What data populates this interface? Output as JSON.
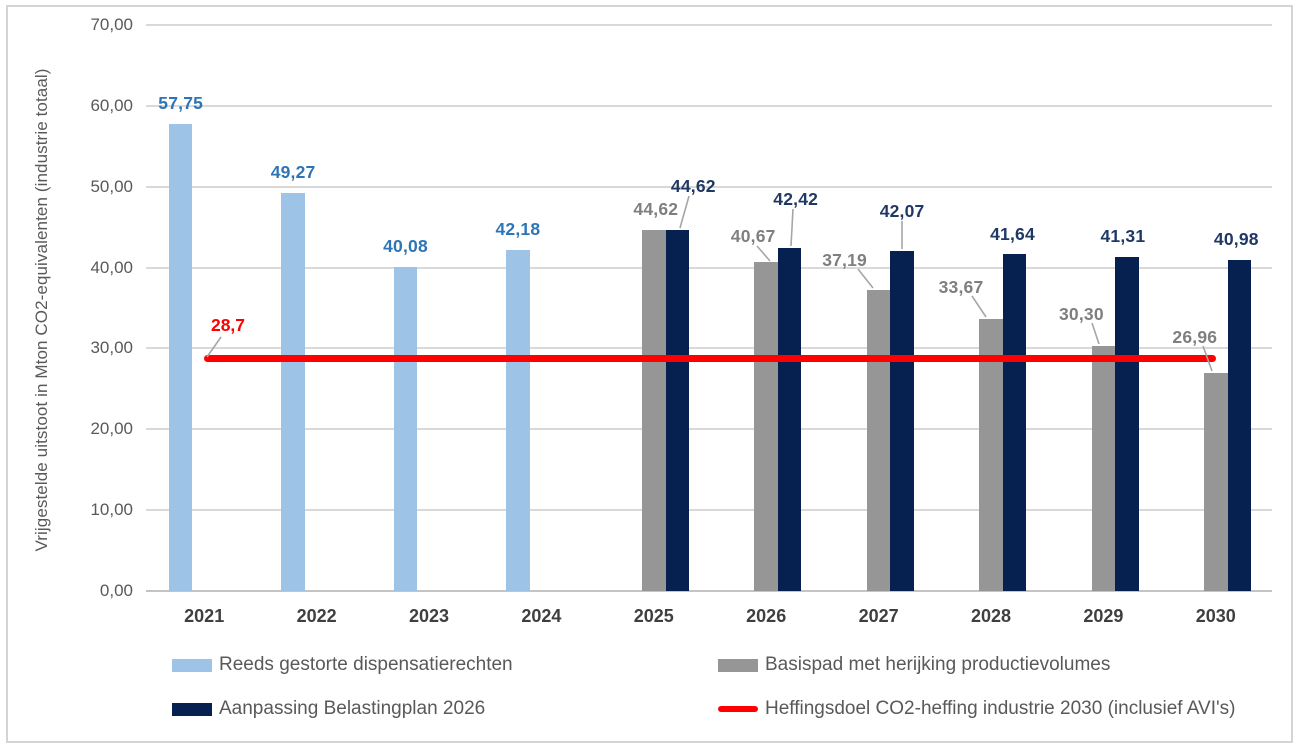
{
  "chart_data": {
    "type": "bar",
    "ylabel": "Vrijgestelde uitstoot in Mton CO2-equivalenten (industrie totaal)",
    "ylim": [
      0,
      70
    ],
    "y_tick_step": 10,
    "y_tick_labels": [
      "0,00",
      "10,00",
      "20,00",
      "30,00",
      "40,00",
      "50,00",
      "60,00",
      "70,00"
    ],
    "categories": [
      "2021",
      "2022",
      "2023",
      "2024",
      "2025",
      "2026",
      "2027",
      "2028",
      "2029",
      "2030"
    ],
    "grid": true,
    "legend_position": "bottom",
    "series": [
      {
        "name": "Reeds gestorte dispensatierechten",
        "color": "#9DC3E6",
        "label_color": "#2E75B6",
        "values": [
          57.75,
          49.27,
          40.08,
          42.18,
          null,
          null,
          null,
          null,
          null,
          null
        ],
        "labels": [
          "57,75",
          "49,27",
          "40,08",
          "42,18",
          null,
          null,
          null,
          null,
          null,
          null
        ]
      },
      {
        "name": "Basispad met herijking productievolumes",
        "color": "#969696",
        "label_color": "#7F7F7F",
        "values": [
          null,
          null,
          null,
          null,
          44.62,
          40.67,
          37.19,
          33.67,
          30.3,
          26.96
        ],
        "labels": [
          null,
          null,
          null,
          null,
          "44,62",
          "40,67",
          "37,19",
          "33,67",
          "30,30",
          "26,96"
        ]
      },
      {
        "name": "Aanpassing Belastingplan 2026",
        "color": "#06204F",
        "label_color": "#1F3864",
        "values": [
          null,
          null,
          null,
          null,
          44.62,
          42.42,
          42.07,
          41.64,
          41.31,
          40.98
        ],
        "labels": [
          null,
          null,
          null,
          null,
          "44,62",
          "42,42",
          "42,07",
          "41,64",
          "41,31",
          "40,98"
        ]
      }
    ],
    "reference_line": {
      "name": "Heffingsdoel CO2-heffing industrie 2030 (inclusief AVI's)",
      "color": "#FF0000",
      "value": 28.7,
      "label": "28,7"
    }
  },
  "legend": {
    "items": [
      {
        "label": "Reeds gestorte dispensatierechten",
        "swatch": "bar",
        "color": "#9DC3E6"
      },
      {
        "label": "Basispad met herijking productievolumes",
        "swatch": "bar",
        "color": "#969696"
      },
      {
        "label": "Aanpassing Belastingplan 2026",
        "swatch": "bar",
        "color": "#06204F"
      },
      {
        "label": "Heffingsdoel CO2-heffing industrie 2030 (inclusief AVI's)",
        "swatch": "line",
        "color": "#FF0000"
      }
    ]
  }
}
